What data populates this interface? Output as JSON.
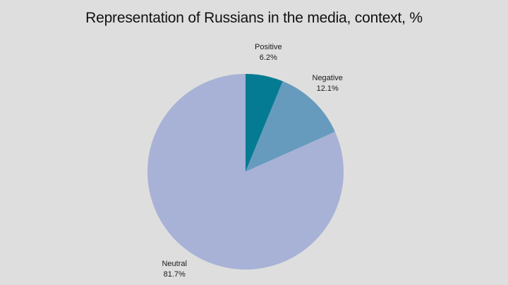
{
  "chart_data": {
    "type": "pie",
    "title": "Representation of Russians in the media, context, %",
    "slices": [
      {
        "name": "Positive",
        "value": 6.2,
        "label": "6.2%",
        "color": "#047b93"
      },
      {
        "name": "Negative",
        "value": 12.1,
        "label": "12.1%",
        "color": "#669bbd"
      },
      {
        "name": "Neutral",
        "value": 81.7,
        "label": "81.7%",
        "color": "#a7b2d6"
      }
    ],
    "start_angle": "12 o'clock",
    "direction": "clockwise",
    "legend": "none"
  }
}
